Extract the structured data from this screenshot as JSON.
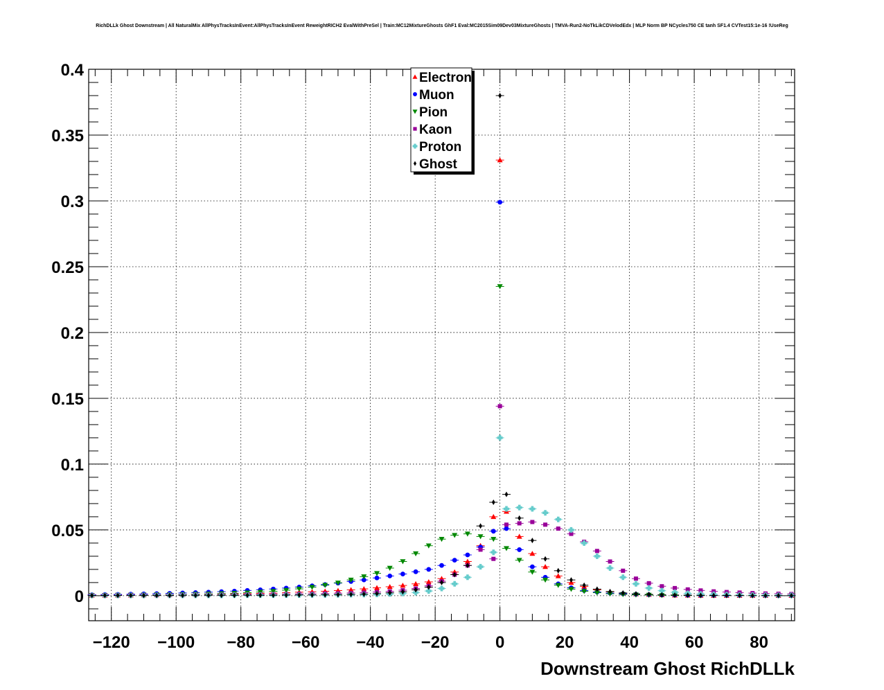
{
  "chart_data": {
    "type": "scatter",
    "title": "RichDLLk Ghost Downstream | All NaturalMix AllPhysTracksInEvent:AllPhysTracksInEvent ReweightRICH2 EvalWithPreSel | Train:MC12MixtureGhosts GhF1 Eval:MC2015Sim09Dev03MixtureGhosts | TMVA-Run2-NoTkLikCDVelodEdx | MLP Norm BP NCycles750 CE tanh SF1.4 CVTest15:1e-16 !UseReg",
    "xlabel": "Downstream Ghost RichDLLk",
    "ylabel": "",
    "xlim": [
      -127,
      91
    ],
    "ylim": [
      -0.019,
      0.4
    ],
    "x_ticks": [
      -120,
      -100,
      -80,
      -60,
      -40,
      -20,
      0,
      20,
      40,
      60,
      80
    ],
    "x_tick_labels": [
      "−120",
      "−100",
      "−80",
      "−60",
      "−40",
      "−20",
      "0",
      "20",
      "40",
      "60",
      "80"
    ],
    "y_ticks": [
      0,
      0.05,
      0.1,
      0.15,
      0.2,
      0.25,
      0.3,
      0.35,
      0.4
    ],
    "y_tick_labels": [
      "0",
      "0.05",
      "0.1",
      "0.15",
      "0.2",
      "0.25",
      "0.3",
      "0.35",
      "0.4"
    ],
    "grid": true,
    "legend_position": "top-center",
    "series": [
      {
        "name": "Electron",
        "color": "#ff0000",
        "marker": "triangle-up",
        "x": [
          -126,
          -122,
          -118,
          -114,
          -110,
          -106,
          -102,
          -98,
          -94,
          -90,
          -86,
          -82,
          -78,
          -74,
          -70,
          -66,
          -62,
          -58,
          -54,
          -50,
          -46,
          -42,
          -38,
          -34,
          -30,
          -26,
          -22,
          -18,
          -14,
          -10,
          -6,
          -2,
          0,
          2,
          6,
          10,
          14,
          18,
          22,
          26,
          30,
          34,
          38,
          42,
          46,
          50,
          54,
          58,
          62,
          66,
          70,
          74,
          78,
          82,
          86,
          90
        ],
        "y": [
          0.0003,
          0.0003,
          0.0004,
          0.0004,
          0.0005,
          0.0006,
          0.0007,
          0.0008,
          0.0009,
          0.001,
          0.0012,
          0.0014,
          0.0016,
          0.0018,
          0.002,
          0.0023,
          0.0027,
          0.003,
          0.0034,
          0.0039,
          0.0045,
          0.0052,
          0.006,
          0.0068,
          0.0078,
          0.009,
          0.0105,
          0.013,
          0.018,
          0.026,
          0.038,
          0.06,
          0.331,
          0.064,
          0.045,
          0.032,
          0.022,
          0.015,
          0.01,
          0.007,
          0.0045,
          0.003,
          0.002,
          0.0013,
          0.0009,
          0.0006,
          0.0004,
          0.0003,
          0.0002,
          0.0002,
          0.0001,
          0.0001,
          0.0001,
          0.0001,
          0.0001,
          0.0001
        ]
      },
      {
        "name": "Muon",
        "color": "#0000ff",
        "marker": "circle",
        "x": [
          -126,
          -122,
          -118,
          -114,
          -110,
          -106,
          -102,
          -98,
          -94,
          -90,
          -86,
          -82,
          -78,
          -74,
          -70,
          -66,
          -62,
          -58,
          -54,
          -50,
          -46,
          -42,
          -38,
          -34,
          -30,
          -26,
          -22,
          -18,
          -14,
          -10,
          -6,
          -2,
          0,
          2,
          6,
          10,
          14,
          18,
          22,
          26,
          30,
          34,
          38,
          42,
          46,
          50,
          54,
          58,
          62,
          66,
          70,
          74,
          78,
          82,
          86,
          90
        ],
        "y": [
          0.0008,
          0.0009,
          0.001,
          0.0012,
          0.0014,
          0.0016,
          0.0018,
          0.0021,
          0.0024,
          0.0027,
          0.0031,
          0.0035,
          0.004,
          0.0045,
          0.0051,
          0.0058,
          0.0066,
          0.0075,
          0.0085,
          0.0096,
          0.0108,
          0.012,
          0.0135,
          0.015,
          0.0165,
          0.0182,
          0.02,
          0.023,
          0.027,
          0.031,
          0.037,
          0.049,
          0.299,
          0.051,
          0.035,
          0.022,
          0.014,
          0.009,
          0.006,
          0.004,
          0.0028,
          0.002,
          0.0015,
          0.0011,
          0.0008,
          0.0006,
          0.0005,
          0.0004,
          0.0003,
          0.0003,
          0.0002,
          0.0002,
          0.0002,
          0.0001,
          0.0001,
          0.0001
        ]
      },
      {
        "name": "Pion",
        "color": "#008800",
        "marker": "triangle-down",
        "x": [
          -126,
          -122,
          -118,
          -114,
          -110,
          -106,
          -102,
          -98,
          -94,
          -90,
          -86,
          -82,
          -78,
          -74,
          -70,
          -66,
          -62,
          -58,
          -54,
          -50,
          -46,
          -42,
          -38,
          -34,
          -30,
          -26,
          -22,
          -18,
          -14,
          -10,
          -6,
          -2,
          0,
          2,
          6,
          10,
          14,
          18,
          22,
          26,
          30,
          34,
          38,
          42,
          46,
          50,
          54,
          58,
          62,
          66,
          70,
          74,
          78,
          82,
          86,
          90
        ],
        "y": [
          0.0004,
          0.0004,
          0.0005,
          0.0006,
          0.0007,
          0.0008,
          0.0009,
          0.001,
          0.0012,
          0.0014,
          0.0016,
          0.0019,
          0.0023,
          0.0028,
          0.0034,
          0.0042,
          0.0052,
          0.0065,
          0.008,
          0.0098,
          0.012,
          0.0145,
          0.017,
          0.021,
          0.026,
          0.032,
          0.038,
          0.043,
          0.046,
          0.047,
          0.045,
          0.043,
          0.235,
          0.036,
          0.027,
          0.018,
          0.012,
          0.008,
          0.005,
          0.0034,
          0.0023,
          0.0015,
          0.001,
          0.0007,
          0.0005,
          0.0003,
          0.0002,
          0.0002,
          0.0001,
          0.0001,
          0.0001,
          0.0001,
          0.0001,
          0.0001,
          0.0001,
          0.0001
        ]
      },
      {
        "name": "Kaon",
        "color": "#990099",
        "marker": "square",
        "x": [
          -126,
          -122,
          -118,
          -114,
          -110,
          -106,
          -102,
          -98,
          -94,
          -90,
          -86,
          -82,
          -78,
          -74,
          -70,
          -66,
          -62,
          -58,
          -54,
          -50,
          -46,
          -42,
          -38,
          -34,
          -30,
          -26,
          -22,
          -18,
          -14,
          -10,
          -6,
          -2,
          0,
          2,
          6,
          10,
          14,
          18,
          22,
          26,
          30,
          34,
          38,
          42,
          46,
          50,
          54,
          58,
          62,
          66,
          70,
          74,
          78,
          82,
          86,
          90
        ],
        "y": [
          0.0005,
          0.0005,
          0.0005,
          0.0006,
          0.0006,
          0.0006,
          0.0007,
          0.0007,
          0.0008,
          0.0008,
          0.0009,
          0.001,
          0.001,
          0.0011,
          0.0012,
          0.0013,
          0.0014,
          0.0015,
          0.0017,
          0.0019,
          0.0021,
          0.0024,
          0.0028,
          0.0033,
          0.0042,
          0.0055,
          0.0075,
          0.011,
          0.016,
          0.023,
          0.035,
          0.028,
          0.144,
          0.054,
          0.055,
          0.056,
          0.054,
          0.051,
          0.047,
          0.041,
          0.034,
          0.026,
          0.019,
          0.013,
          0.0095,
          0.0072,
          0.0058,
          0.0048,
          0.004,
          0.0033,
          0.0028,
          0.0024,
          0.002,
          0.0017,
          0.0015,
          0.0013
        ]
      },
      {
        "name": "Proton",
        "color": "#66cccc",
        "marker": "cross",
        "x": [
          -126,
          -122,
          -118,
          -114,
          -110,
          -106,
          -102,
          -98,
          -94,
          -90,
          -86,
          -82,
          -78,
          -74,
          -70,
          -66,
          -62,
          -58,
          -54,
          -50,
          -46,
          -42,
          -38,
          -34,
          -30,
          -26,
          -22,
          -18,
          -14,
          -10,
          -6,
          -2,
          0,
          2,
          6,
          10,
          14,
          18,
          22,
          26,
          30,
          34,
          38,
          42,
          46,
          50,
          54,
          58,
          62,
          66,
          70,
          74,
          78,
          82,
          86,
          90
        ],
        "y": [
          0.0002,
          0.0002,
          0.0002,
          0.0002,
          0.0002,
          0.0003,
          0.0003,
          0.0003,
          0.0003,
          0.0003,
          0.0003,
          0.0004,
          0.0004,
          0.0004,
          0.0004,
          0.0005,
          0.0005,
          0.0006,
          0.0006,
          0.0007,
          0.0008,
          0.0009,
          0.001,
          0.0013,
          0.0017,
          0.0024,
          0.0036,
          0.0055,
          0.009,
          0.014,
          0.022,
          0.033,
          0.12,
          0.066,
          0.067,
          0.066,
          0.063,
          0.058,
          0.05,
          0.04,
          0.03,
          0.021,
          0.014,
          0.009,
          0.0058,
          0.0038,
          0.0026,
          0.0018,
          0.0013,
          0.001,
          0.0008,
          0.0006,
          0.0005,
          0.0004,
          0.0003,
          0.0003
        ]
      },
      {
        "name": "Ghost",
        "color": "#000000",
        "marker": "diamond",
        "x": [
          -126,
          -122,
          -118,
          -114,
          -110,
          -106,
          -102,
          -98,
          -94,
          -90,
          -86,
          -82,
          -78,
          -74,
          -70,
          -66,
          -62,
          -58,
          -54,
          -50,
          -46,
          -42,
          -38,
          -34,
          -30,
          -26,
          -22,
          -18,
          -14,
          -10,
          -6,
          -2,
          0,
          2,
          6,
          10,
          14,
          18,
          22,
          26,
          30,
          34,
          38,
          42,
          46,
          50,
          54,
          58,
          62,
          66,
          70,
          74,
          78,
          82,
          86,
          90
        ],
        "y": [
          0.0002,
          0.0002,
          0.0002,
          0.0002,
          0.0002,
          0.0002,
          0.0002,
          0.0003,
          0.0003,
          0.0003,
          0.0003,
          0.0003,
          0.0004,
          0.0004,
          0.0004,
          0.0005,
          0.0006,
          0.0006,
          0.0007,
          0.0008,
          0.001,
          0.0012,
          0.0016,
          0.0022,
          0.003,
          0.0045,
          0.0065,
          0.01,
          0.016,
          0.023,
          0.053,
          0.071,
          0.38,
          0.077,
          0.059,
          0.042,
          0.028,
          0.019,
          0.012,
          0.008,
          0.005,
          0.0032,
          0.0021,
          0.0014,
          0.001,
          0.0007,
          0.0005,
          0.0004,
          0.0003,
          0.0002,
          0.0002,
          0.0002,
          0.0001,
          0.0001,
          0.0001,
          0.0001
        ]
      }
    ]
  }
}
